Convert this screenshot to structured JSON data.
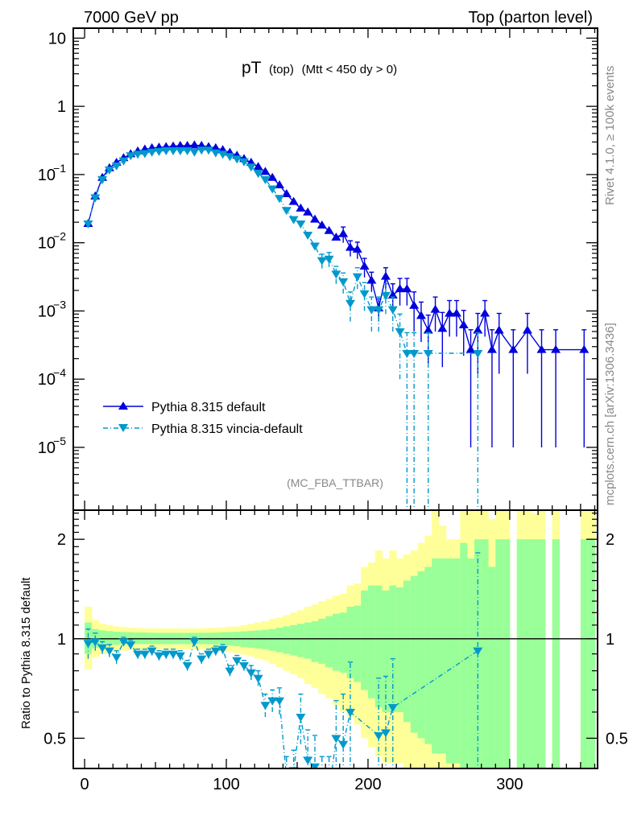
{
  "header": {
    "left_title": "7000 GeV pp",
    "right_title": "Top (parton level)"
  },
  "side_labels": {
    "rivet": "Rivet 4.1.0, ≥ 100k events",
    "mcplots": "mcplots.cern.ch [arXiv:1306.3436]"
  },
  "chart_data": [
    {
      "type": "line",
      "panel": "main",
      "title_main": "pT",
      "title_sub": "(top)",
      "title_cut": "(Mtt < 450 dy > 0)",
      "analysis_tag": "(MC_FBA_TTBAR)",
      "xlabel": "",
      "ylabel": "",
      "yscale": "log",
      "xlim": [
        -8,
        362
      ],
      "ylim": [
        1.2e-06,
        14
      ],
      "x_ticks": [
        0,
        100,
        200,
        300
      ],
      "y_ticks": [
        {
          "value": 10,
          "label": "10"
        },
        {
          "value": 1,
          "label": "1"
        },
        {
          "value": 0.1,
          "label": "10^-1"
        },
        {
          "value": 0.01,
          "label": "10^-2"
        },
        {
          "value": 0.001,
          "label": "10^-3"
        },
        {
          "value": 0.0001,
          "label": "10^-4"
        },
        {
          "value": 1e-05,
          "label": "10^-5"
        }
      ],
      "legend_position": "bottom-left",
      "series": [
        {
          "name": "Pythia 8.315 default",
          "color": "#0000dd",
          "marker": "triangle-up",
          "linestyle": "solid",
          "x": [
            2.5,
            7.5,
            12.5,
            17.5,
            22.5,
            27.5,
            32.5,
            37.5,
            42.5,
            47.5,
            52.5,
            57.5,
            62.5,
            67.5,
            72.5,
            77.5,
            82.5,
            87.5,
            92.5,
            97.5,
            102.5,
            107.5,
            112.5,
            117.5,
            122.5,
            127.5,
            132.5,
            137.5,
            142.5,
            147.5,
            152.5,
            157.5,
            162.5,
            167.5,
            172.5,
            177.5,
            182.5,
            187.5,
            192.5,
            197.5,
            202.5,
            207.5,
            212.5,
            217.5,
            222.5,
            227.5,
            232.5,
            237.5,
            242.5,
            247.5,
            252.5,
            257.5,
            262.5,
            267.5,
            272.5,
            277.5,
            282.5,
            287.5,
            292.5,
            302.5,
            312.5,
            322.5,
            332.5,
            352.5
          ],
          "y": [
            0.019,
            0.048,
            0.09,
            0.125,
            0.15,
            0.175,
            0.2,
            0.22,
            0.235,
            0.245,
            0.25,
            0.255,
            0.26,
            0.265,
            0.265,
            0.27,
            0.265,
            0.255,
            0.245,
            0.23,
            0.21,
            0.19,
            0.17,
            0.15,
            0.13,
            0.11,
            0.09,
            0.07,
            0.052,
            0.04,
            0.032,
            0.028,
            0.022,
            0.018,
            0.015,
            0.012,
            0.0135,
            0.0085,
            0.008,
            0.0045,
            0.0028,
            0.0011,
            0.0032,
            0.0017,
            0.0021,
            0.0021,
            0.0012,
            0.00085,
            0.00052,
            0.00105,
            0.00055,
            0.00092,
            0.00092,
            0.00062,
            0.00027,
            0.00052,
            0.00092,
            0.00027,
            0.00052,
            0.00027,
            0.00052,
            0.00027,
            0.00027,
            0.00027
          ],
          "yerr": [
            0.0004,
            0.0008,
            0.001,
            0.0012,
            0.0013,
            0.0014,
            0.0015,
            0.0015,
            0.0016,
            0.0016,
            0.0016,
            0.0016,
            0.0016,
            0.0016,
            0.0016,
            0.0016,
            0.0016,
            0.0016,
            0.0016,
            0.0015,
            0.0014,
            0.0013,
            0.0013,
            0.0012,
            0.0011,
            0.001,
            0.0009,
            0.0008,
            0.0007,
            0.0006,
            0.0005,
            0.0005,
            0.0004,
            0.0004,
            0.0004,
            0.0003,
            0.0035,
            0.0022,
            0.0022,
            0.0014,
            0.0009,
            0.0004,
            0.0011,
            0.0008,
            0.0009,
            0.0009,
            0.0007,
            0.0005,
            0.00035,
            0.00055,
            0.0004,
            0.0005,
            0.0005,
            0.0004,
            0.00026,
            0.0004,
            0.0005,
            0.00026,
            0.0004,
            0.00026,
            0.0004,
            0.00026,
            0.00026,
            0.00026
          ]
        },
        {
          "name": "Pythia 8.315 vincia-default",
          "color": "#0099cc",
          "marker": "triangle-down",
          "linestyle": "dashdot",
          "x": [
            2.5,
            7.5,
            12.5,
            17.5,
            22.5,
            27.5,
            32.5,
            37.5,
            42.5,
            47.5,
            52.5,
            57.5,
            62.5,
            67.5,
            72.5,
            77.5,
            82.5,
            87.5,
            92.5,
            97.5,
            102.5,
            107.5,
            112.5,
            117.5,
            122.5,
            127.5,
            132.5,
            137.5,
            142.5,
            147.5,
            152.5,
            157.5,
            162.5,
            167.5,
            172.5,
            177.5,
            182.5,
            187.5,
            192.5,
            197.5,
            202.5,
            207.5,
            212.5,
            217.5,
            222.5,
            227.5,
            232.5,
            242.5,
            277.5
          ],
          "y": [
            0.019,
            0.046,
            0.085,
            0.118,
            0.135,
            0.16,
            0.19,
            0.2,
            0.205,
            0.215,
            0.22,
            0.225,
            0.225,
            0.225,
            0.225,
            0.215,
            0.23,
            0.23,
            0.21,
            0.2,
            0.185,
            0.17,
            0.155,
            0.13,
            0.105,
            0.085,
            0.062,
            0.045,
            0.03,
            0.022,
            0.019,
            0.013,
            0.009,
            0.0055,
            0.0058,
            0.0035,
            0.0027,
            0.0013,
            0.0032,
            0.0018,
            0.00105,
            0.00105,
            0.0017,
            0.00105,
            0.0005,
            0.00024,
            0.00024,
            0.00024,
            0.00024
          ],
          "yerr": [
            0.0004,
            0.0008,
            0.001,
            0.0012,
            0.0013,
            0.0014,
            0.0015,
            0.0015,
            0.0015,
            0.0015,
            0.0015,
            0.0015,
            0.0015,
            0.0015,
            0.0015,
            0.0015,
            0.0015,
            0.0015,
            0.0015,
            0.0014,
            0.0014,
            0.0013,
            0.0012,
            0.0011,
            0.001,
            0.0009,
            0.0008,
            0.0007,
            0.0005,
            0.0004,
            0.0004,
            0.0003,
            0.0003,
            0.0013,
            0.0014,
            0.001,
            0.0009,
            0.0006,
            0.0011,
            0.0008,
            0.00055,
            0.00055,
            0.0008,
            0.00055,
            0.0004,
            0.00024,
            0.00024,
            0.00024,
            0.00024
          ]
        }
      ]
    },
    {
      "type": "line",
      "panel": "ratio",
      "ylabel": "Ratio to Pythia 8.315 default",
      "yscale": "log",
      "xlim": [
        -8,
        362
      ],
      "ylim": [
        0.405,
        2.45
      ],
      "x_ticks": [
        0,
        100,
        200,
        300
      ],
      "y_ticks": [
        {
          "value": 0.5,
          "label": "0.5"
        },
        {
          "value": 1,
          "label": "1"
        },
        {
          "value": 2,
          "label": "2"
        }
      ],
      "reference_line": 1,
      "band_colors": {
        "inner": "#99ff99",
        "outer": "#ffff99"
      },
      "bands": {
        "x_edges": [
          0,
          5,
          10,
          15,
          20,
          25,
          30,
          35,
          40,
          45,
          50,
          55,
          60,
          65,
          70,
          75,
          80,
          85,
          90,
          95,
          100,
          105,
          110,
          115,
          120,
          125,
          130,
          135,
          140,
          145,
          150,
          155,
          160,
          165,
          170,
          175,
          180,
          185,
          190,
          195,
          200,
          205,
          210,
          215,
          220,
          225,
          230,
          235,
          240,
          245,
          250,
          255,
          260,
          265,
          270,
          275,
          280,
          285,
          290,
          295,
          300,
          305,
          310,
          315,
          320,
          325,
          330,
          335,
          340,
          345,
          350,
          355,
          360
        ],
        "inner_up": [
          1.12,
          1.07,
          1.06,
          1.055,
          1.05,
          1.048,
          1.046,
          1.045,
          1.044,
          1.043,
          1.042,
          1.042,
          1.042,
          1.042,
          1.042,
          1.042,
          1.042,
          1.043,
          1.044,
          1.046,
          1.048,
          1.05,
          1.053,
          1.056,
          1.06,
          1.065,
          1.07,
          1.08,
          1.09,
          1.1,
          1.11,
          1.12,
          1.13,
          1.15,
          1.17,
          1.19,
          1.2,
          1.25,
          1.26,
          1.4,
          1.45,
          1.45,
          1.4,
          1.45,
          1.43,
          1.5,
          1.55,
          1.6,
          1.65,
          1.75,
          1.75,
          1.75,
          1.75,
          1.95,
          1.75,
          2.0,
          2.0,
          1.65,
          2.0,
          2.0,
          0,
          2.0,
          2.0,
          2.0,
          2.0,
          0,
          2.0,
          0,
          0,
          0,
          2.0,
          2.0
        ],
        "inner_dn": [
          0.9,
          0.94,
          0.95,
          0.955,
          0.96,
          0.962,
          0.963,
          0.963,
          0.963,
          0.963,
          0.963,
          0.963,
          0.963,
          0.963,
          0.963,
          0.963,
          0.963,
          0.962,
          0.96,
          0.958,
          0.955,
          0.95,
          0.945,
          0.94,
          0.935,
          0.93,
          0.92,
          0.91,
          0.9,
          0.89,
          0.88,
          0.87,
          0.85,
          0.84,
          0.82,
          0.8,
          0.79,
          0.76,
          0.74,
          0.7,
          0.66,
          0.62,
          0.6,
          0.6,
          0.6,
          0.56,
          0.52,
          0.5,
          0.48,
          0.45,
          0.45,
          0.42,
          0.42,
          0.4,
          0.4,
          0.4,
          0.4,
          0.4,
          0.4,
          0.4,
          0,
          0.4,
          0.4,
          0.4,
          0.4,
          0,
          0.4,
          0,
          0,
          0,
          0.4,
          0.4
        ],
        "outer_up": [
          1.25,
          1.14,
          1.11,
          1.1,
          1.09,
          1.085,
          1.08,
          1.078,
          1.076,
          1.075,
          1.074,
          1.074,
          1.074,
          1.074,
          1.074,
          1.075,
          1.076,
          1.078,
          1.08,
          1.083,
          1.087,
          1.09,
          1.1,
          1.11,
          1.12,
          1.13,
          1.15,
          1.16,
          1.18,
          1.2,
          1.22,
          1.25,
          1.27,
          1.3,
          1.32,
          1.35,
          1.37,
          1.45,
          1.47,
          1.65,
          1.7,
          1.85,
          1.75,
          1.85,
          1.75,
          1.8,
          1.85,
          1.95,
          2.05,
          2.45,
          2.2,
          2.0,
          2.0,
          2.45,
          2.45,
          2.45,
          2.45,
          2.3,
          2.45,
          2.45,
          0,
          2.45,
          2.45,
          2.4,
          2.45,
          0,
          2.45,
          0,
          0,
          0,
          2.45,
          2.45
        ],
        "outer_dn": [
          0.81,
          0.88,
          0.9,
          0.91,
          0.915,
          0.92,
          0.923,
          0.925,
          0.926,
          0.927,
          0.928,
          0.928,
          0.928,
          0.928,
          0.928,
          0.927,
          0.926,
          0.924,
          0.92,
          0.915,
          0.91,
          0.905,
          0.895,
          0.885,
          0.87,
          0.86,
          0.84,
          0.82,
          0.8,
          0.78,
          0.76,
          0.73,
          0.71,
          0.68,
          0.66,
          0.63,
          0.6,
          0.58,
          0.55,
          0.5,
          0.47,
          0.44,
          0.42,
          0.42,
          0.42,
          0.4,
          0.4,
          0.4,
          0.4,
          0.4,
          0.4,
          0.4,
          0.4,
          0.4,
          0.4,
          0.4,
          0.4,
          0.4,
          0.4,
          0.4,
          0,
          0.4,
          0.4,
          0.4,
          0.4,
          0,
          0.4,
          0,
          0,
          0,
          0.4,
          0.4
        ]
      },
      "series": [
        {
          "name": "Pythia 8.315 vincia-default",
          "color": "#0099cc",
          "x": [
            2.5,
            7.5,
            12.5,
            17.5,
            22.5,
            27.5,
            32.5,
            37.5,
            42.5,
            47.5,
            52.5,
            57.5,
            62.5,
            67.5,
            72.5,
            77.5,
            82.5,
            87.5,
            92.5,
            97.5,
            102.5,
            107.5,
            112.5,
            117.5,
            122.5,
            127.5,
            132.5,
            137.5,
            142.5,
            147.5,
            152.5,
            157.5,
            162.5,
            167.5,
            172.5,
            177.5,
            182.5,
            187.5,
            207.5,
            212.5,
            217.5,
            277.5
          ],
          "y": [
            0.97,
            0.98,
            0.94,
            0.92,
            0.88,
            0.98,
            0.96,
            0.9,
            0.9,
            0.92,
            0.89,
            0.9,
            0.9,
            0.89,
            0.83,
            0.98,
            0.87,
            0.9,
            0.92,
            0.93,
            0.8,
            0.86,
            0.83,
            0.79,
            0.76,
            0.63,
            0.65,
            0.65,
            0.38,
            0.4,
            0.58,
            0.43,
            0.41,
            0.34,
            0.34,
            0.5,
            0.48,
            0.6,
            0.51,
            0.52,
            0.62,
            0.92
          ],
          "yerr": [
            0.1,
            0.06,
            0.04,
            0.04,
            0.04,
            0.03,
            0.03,
            0.03,
            0.03,
            0.03,
            0.03,
            0.03,
            0.03,
            0.03,
            0.03,
            0.03,
            0.03,
            0.03,
            0.03,
            0.03,
            0.03,
            0.03,
            0.03,
            0.04,
            0.04,
            0.05,
            0.05,
            0.06,
            0.06,
            0.06,
            0.1,
            0.1,
            0.1,
            0.1,
            0.1,
            0.15,
            0.2,
            0.25,
            0.25,
            0.25,
            0.25,
            0.9
          ]
        }
      ]
    }
  ]
}
